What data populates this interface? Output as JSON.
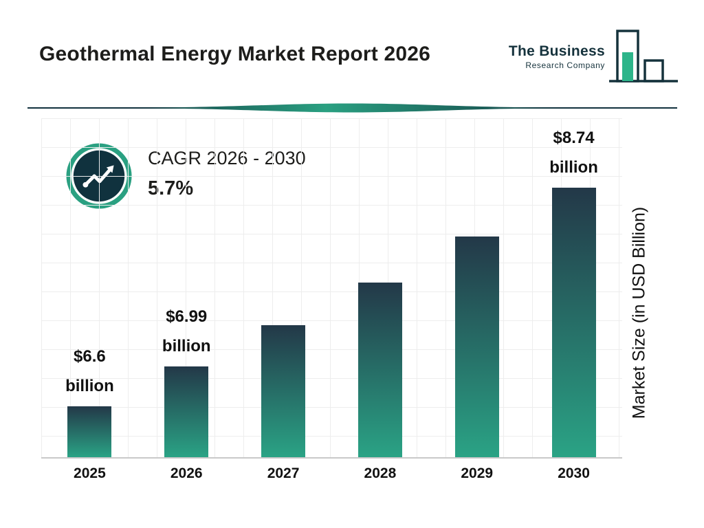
{
  "header": {
    "title": "Geothermal Energy Market Report 2026",
    "logo": {
      "line1": "The Business",
      "line2": "Research Company"
    }
  },
  "cagr": {
    "label": "CAGR 2026 - 2030",
    "value": "5.7%"
  },
  "chart_data": {
    "type": "bar",
    "title": "Geothermal Energy Market Report 2026",
    "categories": [
      "2025",
      "2026",
      "2027",
      "2028",
      "2029",
      "2030"
    ],
    "values": [
      6.6,
      6.99,
      7.39,
      7.81,
      8.26,
      8.74
    ],
    "value_labels": [
      {
        "amount": "$6.6",
        "unit": "billion"
      },
      {
        "amount": "$6.99",
        "unit": "billion"
      },
      null,
      null,
      null,
      {
        "amount": "$8.74",
        "unit": "billion"
      }
    ],
    "xlabel": "",
    "ylabel": "Market Size (in USD Billion)",
    "ylim": [
      6.1,
      8.74
    ],
    "grid": true,
    "legend": "none",
    "cagr": "5.7%",
    "cagr_period": "2026 - 2030",
    "unit": "USD Billion"
  },
  "colors": {
    "bar_top": "#233848",
    "bar_bottom": "#2aa385",
    "accent_teal": "#2aa081",
    "dark_navy": "#10323e",
    "grid": "#ededed"
  }
}
